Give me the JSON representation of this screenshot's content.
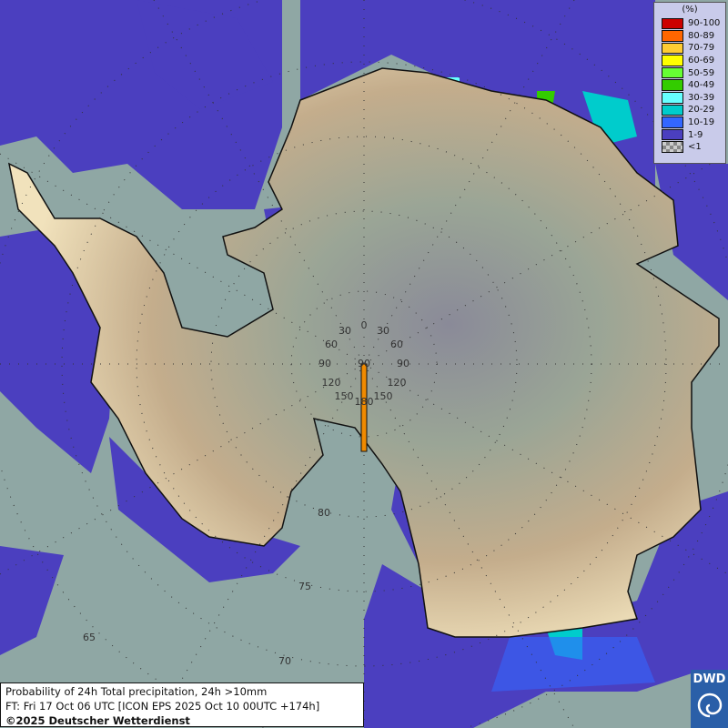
{
  "legend": {
    "unit": "(%)",
    "items": [
      {
        "label": "90-100",
        "color": "#cc0000"
      },
      {
        "label": "80-89",
        "color": "#ff6600"
      },
      {
        "label": "70-79",
        "color": "#ffcc33"
      },
      {
        "label": "60-69",
        "color": "#ffff00"
      },
      {
        "label": "50-59",
        "color": "#66ff33"
      },
      {
        "label": "40-49",
        "color": "#33cc00"
      },
      {
        "label": "30-39",
        "color": "#66ffff"
      },
      {
        "label": "20-29",
        "color": "#00cccc"
      },
      {
        "label": "10-19",
        "color": "#3366ff"
      },
      {
        "label": "1-9",
        "color": "#4b3fbf"
      },
      {
        "label": "<1",
        "color": "checker"
      }
    ]
  },
  "grid": {
    "longitude_labels": [
      "0",
      "30",
      "30",
      "60",
      "60",
      "90",
      "90",
      "90",
      "120",
      "120",
      "150",
      "150",
      "180"
    ],
    "latitude_labels": [
      "80",
      "75",
      "70",
      "65"
    ]
  },
  "info": {
    "title": "Probability of 24h Total precipitation, 24h >10mm",
    "forecast": "FT: Fri 17 Oct 06 UTC [ICON EPS 2025 Oct 10 00UTC +174h]",
    "copyright": "©2025 Deutscher Wetterdienst"
  },
  "logo": {
    "text": "DWD"
  },
  "colors": {
    "ocean": "#8fa7a4",
    "land_low": "#f2e2b8",
    "land_high": "#8c8c96",
    "coast": "#111111",
    "ice_shelf_edge": "#f08a00"
  }
}
